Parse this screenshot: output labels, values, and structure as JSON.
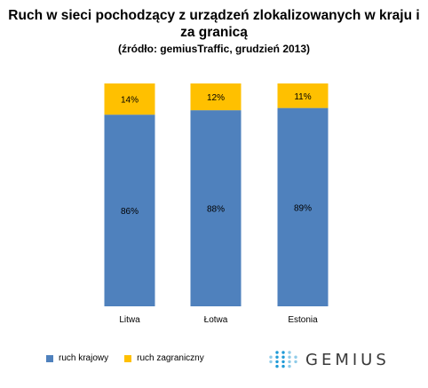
{
  "chart_data": {
    "type": "bar",
    "stacked": true,
    "title": "Ruch w sieci pochodzący z urządzeń zlokalizowanych w kraju i za granicą",
    "subtitle": "(źródło: gemiusTraffic, grudzień 2013)",
    "categories": [
      "Litwa",
      "Łotwa",
      "Estonia"
    ],
    "series": [
      {
        "name": "ruch krajowy",
        "values": [
          86,
          88,
          89
        ],
        "labels": [
          "86%",
          "88%",
          "89%"
        ],
        "color": "#4f81bd"
      },
      {
        "name": "ruch zagraniczny",
        "values": [
          14,
          12,
          11
        ],
        "labels": [
          "14%",
          "12%",
          "11%"
        ],
        "color": "#ffc000"
      }
    ],
    "ylim": [
      0,
      100
    ],
    "grid": false,
    "legend_position": "bottom-left"
  },
  "brand": {
    "logo_text": "GEMIUS",
    "logo_color": "#3a3a3a",
    "dot_colors": [
      "#1f9bd7",
      "#8fcbe8"
    ]
  }
}
